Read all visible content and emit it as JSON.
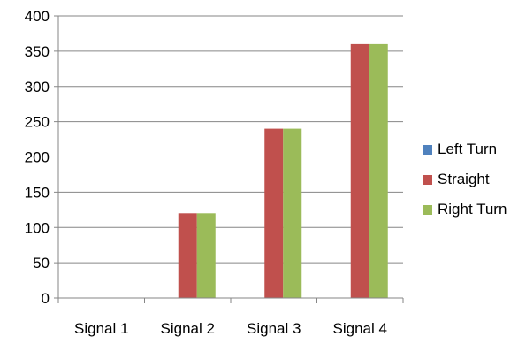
{
  "chart_data": {
    "type": "bar",
    "title": "",
    "xlabel": "",
    "ylabel": "",
    "categories": [
      "Signal 1",
      "Signal 2",
      "Signal 3",
      "Signal 4"
    ],
    "series": [
      {
        "name": "Left Turn",
        "color": "#4F81BD",
        "values": [
          0,
          0,
          0,
          0
        ]
      },
      {
        "name": "Straight",
        "color": "#C0504D",
        "values": [
          0,
          120,
          240,
          360
        ]
      },
      {
        "name": "Right Turn",
        "color": "#9BBB59",
        "values": [
          0,
          120,
          240,
          360
        ]
      }
    ],
    "ylim": [
      0,
      400
    ],
    "yticks": [
      "0",
      "50",
      "100",
      "150",
      "200",
      "250",
      "300",
      "350",
      "400"
    ],
    "grid": true,
    "legend_position": "right"
  }
}
